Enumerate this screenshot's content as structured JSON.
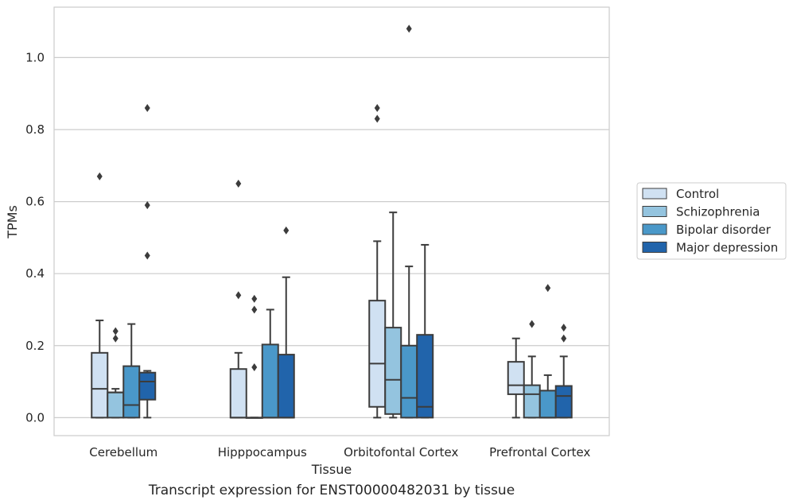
{
  "chart_data": {
    "type": "box",
    "caption": "Transcript expression for ENST00000482031 by tissue",
    "xlabel": "Tissue",
    "ylabel": "TPMs",
    "ylim": [
      -0.05,
      1.14
    ],
    "yticks": [
      0.0,
      0.2,
      0.4,
      0.6,
      0.8,
      1.0
    ],
    "ytick_labels": [
      "0.0",
      "0.2",
      "0.4",
      "0.6",
      "0.8",
      "1.0"
    ],
    "grid": true,
    "legend_position": "right",
    "categories": [
      "Cerebellum",
      "Hipppocampus",
      "Orbitofontal Cortex",
      "Prefrontal Cortex"
    ],
    "series": [
      {
        "name": "Control",
        "color": "#d0e1f2",
        "boxes": [
          {
            "whislo": 0.0,
            "q1": 0.0,
            "med": 0.08,
            "q3": 0.18,
            "whishi": 0.27,
            "fliers": [
              0.67
            ]
          },
          {
            "whislo": 0.0,
            "q1": 0.0,
            "med": 0.0,
            "q3": 0.135,
            "whishi": 0.18,
            "fliers": [
              0.34,
              0.65
            ]
          },
          {
            "whislo": 0.0,
            "q1": 0.03,
            "med": 0.15,
            "q3": 0.325,
            "whishi": 0.49,
            "fliers": [
              0.83,
              0.86
            ]
          },
          {
            "whislo": 0.0,
            "q1": 0.065,
            "med": 0.09,
            "q3": 0.155,
            "whishi": 0.22,
            "fliers": []
          }
        ]
      },
      {
        "name": "Schizophrenia",
        "color": "#94c4df",
        "boxes": [
          {
            "whislo": 0.0,
            "q1": 0.0,
            "med": 0.07,
            "q3": 0.07,
            "whishi": 0.08,
            "fliers": [
              0.22,
              0.24
            ]
          },
          {
            "whislo": 0.0,
            "q1": 0.0,
            "med": 0.0,
            "q3": 0.0,
            "whishi": 0.0,
            "fliers": [
              0.14,
              0.3,
              0.33
            ]
          },
          {
            "whislo": 0.0,
            "q1": 0.01,
            "med": 0.105,
            "q3": 0.25,
            "whishi": 0.57,
            "fliers": []
          },
          {
            "whislo": 0.0,
            "q1": 0.0,
            "med": 0.065,
            "q3": 0.09,
            "whishi": 0.17,
            "fliers": [
              0.26
            ]
          }
        ]
      },
      {
        "name": "Bipolar disorder",
        "color": "#4a98c9",
        "boxes": [
          {
            "whislo": 0.0,
            "q1": 0.0,
            "med": 0.035,
            "q3": 0.143,
            "whishi": 0.26,
            "fliers": []
          },
          {
            "whislo": 0.0,
            "q1": 0.0,
            "med": 0.0,
            "q3": 0.203,
            "whishi": 0.3,
            "fliers": []
          },
          {
            "whislo": 0.0,
            "q1": 0.0,
            "med": 0.055,
            "q3": 0.2,
            "whishi": 0.42,
            "fliers": [
              1.08
            ]
          },
          {
            "whislo": 0.0,
            "q1": 0.0,
            "med": 0.0,
            "q3": 0.075,
            "whishi": 0.118,
            "fliers": [
              0.36
            ]
          }
        ]
      },
      {
        "name": "Major depression",
        "color": "#2164ab",
        "boxes": [
          {
            "whislo": 0.0,
            "q1": 0.05,
            "med": 0.1,
            "q3": 0.125,
            "whishi": 0.13,
            "fliers": [
              0.45,
              0.59,
              0.86
            ]
          },
          {
            "whislo": 0.0,
            "q1": 0.0,
            "med": 0.0,
            "q3": 0.175,
            "whishi": 0.39,
            "fliers": [
              0.52
            ]
          },
          {
            "whislo": 0.0,
            "q1": 0.0,
            "med": 0.03,
            "q3": 0.23,
            "whishi": 0.48,
            "fliers": []
          },
          {
            "whislo": 0.0,
            "q1": 0.0,
            "med": 0.06,
            "q3": 0.088,
            "whishi": 0.17,
            "fliers": [
              0.22,
              0.25
            ]
          }
        ]
      }
    ]
  }
}
